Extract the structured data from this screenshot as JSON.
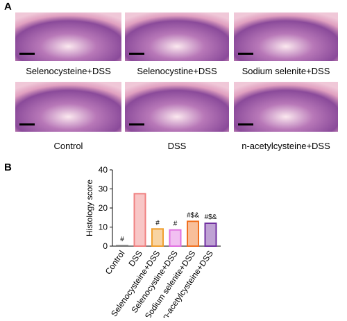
{
  "panel_a": {
    "label": "A",
    "images": [
      {
        "label": "Selenocysteine+DSS"
      },
      {
        "label": "Selenocystine+DSS"
      },
      {
        "label": "Sodium selenite+DSS"
      },
      {
        "label": "Control"
      },
      {
        "label": "DSS"
      },
      {
        "label": "n-acetylcysteine+DSS"
      }
    ]
  },
  "chart_data": {
    "type": "bar",
    "panel_label": "B",
    "y_label": "Histology score",
    "categories": [
      "Control",
      "DSS",
      "Selenocysteine+DSS",
      "Selenocystine+DSS",
      "Sodium selenite+DSS",
      "n-acetylcysteine+DSS"
    ],
    "values": [
      0.3,
      27.5,
      9,
      8.5,
      13,
      12
    ],
    "colors": [
      "#808080",
      "#f08080",
      "#f0a030",
      "#e070e0",
      "#f07020",
      "#7030a0"
    ],
    "annotations": [
      "#",
      null,
      "#",
      "#",
      "#$&",
      "#$&"
    ],
    "ylim": [
      0,
      40
    ],
    "yticks": [
      0,
      10,
      20,
      30,
      40
    ]
  }
}
